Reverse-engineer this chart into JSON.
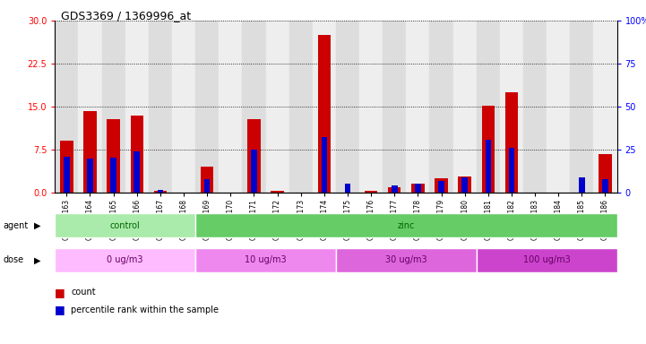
{
  "title": "GDS3369 / 1369996_at",
  "samples": [
    "GSM280163",
    "GSM280164",
    "GSM280165",
    "GSM280166",
    "GSM280167",
    "GSM280168",
    "GSM280169",
    "GSM280170",
    "GSM280171",
    "GSM280172",
    "GSM280173",
    "GSM280174",
    "GSM280175",
    "GSM280176",
    "GSM280177",
    "GSM280178",
    "GSM280179",
    "GSM280180",
    "GSM280181",
    "GSM280182",
    "GSM280183",
    "GSM280184",
    "GSM280185",
    "GSM280186"
  ],
  "count": [
    9.0,
    14.2,
    12.8,
    13.5,
    0.3,
    0.0,
    4.5,
    0.0,
    12.8,
    0.3,
    0.0,
    27.5,
    0.0,
    0.3,
    1.0,
    1.5,
    2.5,
    2.8,
    15.2,
    17.5,
    0.0,
    0.0,
    0.0,
    6.8
  ],
  "percentile": [
    21.0,
    20.0,
    20.5,
    24.0,
    1.5,
    0.0,
    8.0,
    0.0,
    25.0,
    0.0,
    0.0,
    32.5,
    5.0,
    0.0,
    4.0,
    5.0,
    7.0,
    9.0,
    30.5,
    26.0,
    0.0,
    0.0,
    9.0,
    8.0
  ],
  "count_color": "#cc0000",
  "percentile_color": "#0000cc",
  "bar_width": 0.55,
  "percentile_bar_width": 0.25,
  "ylim_left": [
    0,
    30
  ],
  "yticks_left": [
    0,
    7.5,
    15,
    22.5,
    30
  ],
  "ylim_right": [
    0,
    100
  ],
  "yticks_right": [
    0,
    25,
    50,
    75,
    100
  ],
  "agent_groups": [
    {
      "label": "control",
      "start": 0,
      "end": 6,
      "color": "#aaeaaa"
    },
    {
      "label": "zinc",
      "start": 6,
      "end": 24,
      "color": "#66cc66"
    }
  ],
  "dose_groups": [
    {
      "label": "0 ug/m3",
      "start": 0,
      "end": 6,
      "color": "#ffbbff"
    },
    {
      "label": "10 ug/m3",
      "start": 6,
      "end": 12,
      "color": "#ee88ee"
    },
    {
      "label": "30 ug/m3",
      "start": 12,
      "end": 18,
      "color": "#dd66dd"
    },
    {
      "label": "100 ug/m3",
      "start": 18,
      "end": 24,
      "color": "#cc44cc"
    }
  ],
  "legend_count": "count",
  "legend_percentile": "percentile rank within the sample"
}
